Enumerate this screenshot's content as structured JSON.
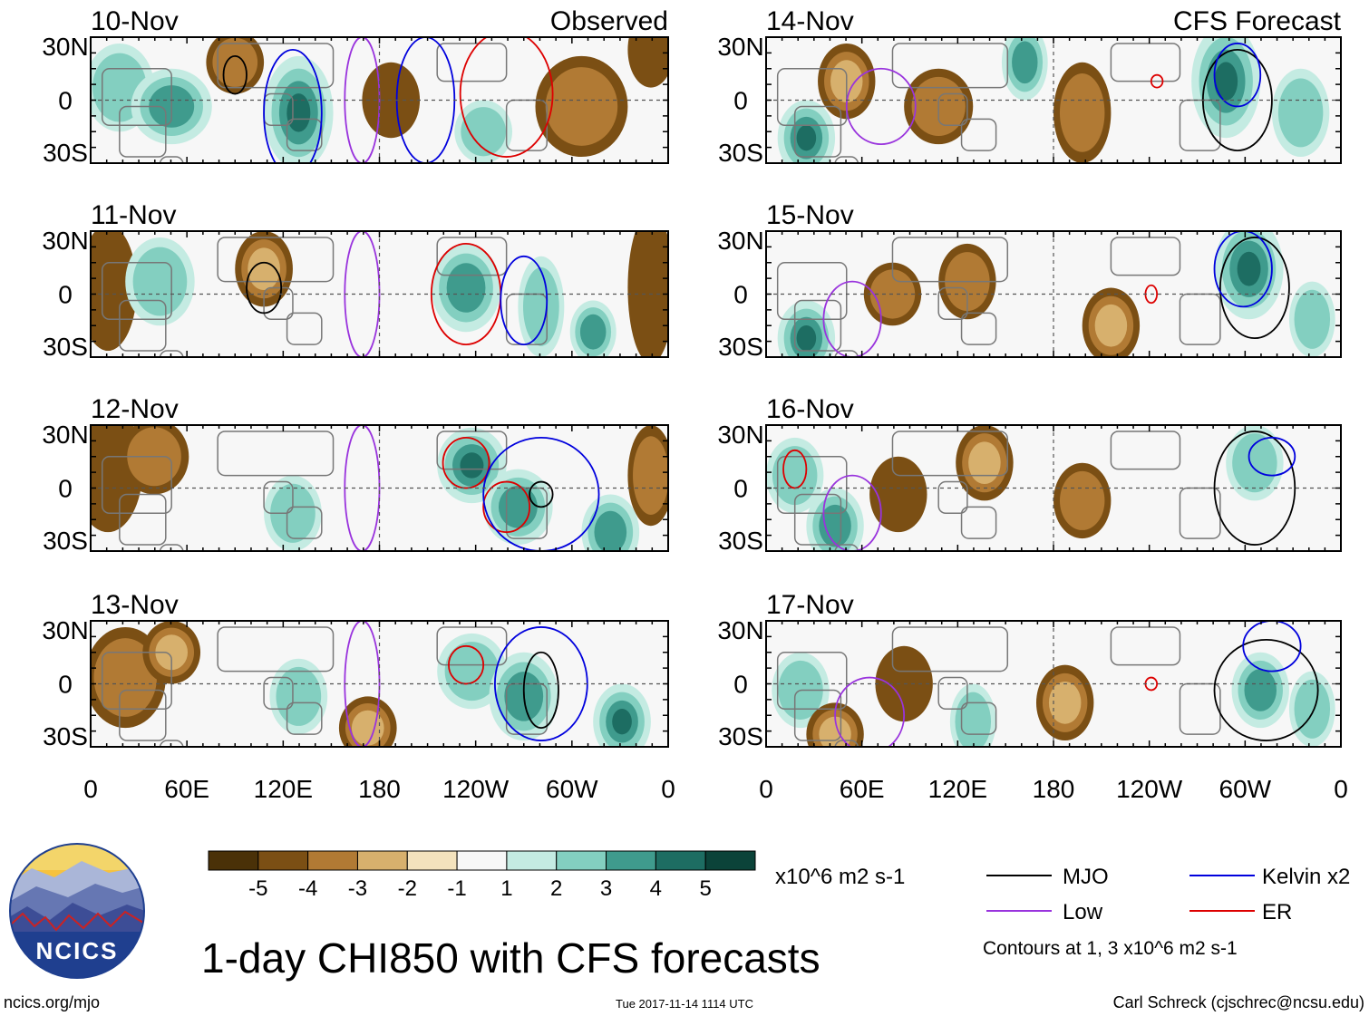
{
  "title": "1-day CHI850 with CFS forecasts",
  "site": "ncics.org/mjo",
  "timestamp": "Tue 2017-11-14 1114 UTC",
  "author": "Carl Schreck (cjschrec@ncsu.edu)",
  "logo": {
    "text": "NCICS",
    "icon": "ncics-mountain-logo"
  },
  "columns": [
    {
      "label": "Observed",
      "dates": [
        "10-Nov",
        "11-Nov",
        "12-Nov",
        "13-Nov"
      ]
    },
    {
      "label": "CFS Forecast",
      "dates": [
        "14-Nov",
        "15-Nov",
        "16-Nov",
        "17-Nov"
      ]
    }
  ],
  "lat_ticks": [
    "30N",
    "0",
    "30S"
  ],
  "lon_ticks": [
    "0",
    "60E",
    "120E",
    "180",
    "120W",
    "60W",
    "0"
  ],
  "colorbar": {
    "labels": [
      "-5",
      "-4",
      "-3",
      "-2",
      "-1",
      "1",
      "2",
      "3",
      "4",
      "5"
    ],
    "units": "x10^6 m2 s-1",
    "colors": [
      "#4a3108",
      "#7b4f14",
      "#b17a34",
      "#d7b06d",
      "#f3e2bd",
      "#f7f7f7",
      "#c4ebe2",
      "#83cfc0",
      "#3f9b8d",
      "#1d6d62",
      "#0b4339"
    ]
  },
  "legend": {
    "items": [
      {
        "label": "MJO",
        "color": "#000000"
      },
      {
        "label": "Kelvin x2",
        "color": "#0000dd"
      },
      {
        "label": "Low",
        "color": "#9933dd"
      },
      {
        "label": "ER",
        "color": "#dd0000"
      }
    ],
    "note": "Contours at 1, 3 x10^6 m2 s-1"
  }
}
